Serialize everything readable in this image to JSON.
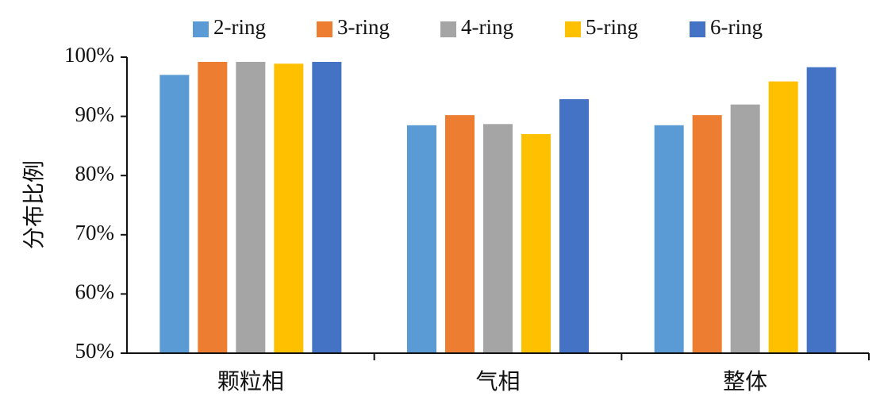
{
  "chart_data": {
    "type": "bar",
    "title": "",
    "xlabel": "",
    "ylabel": "分布比例",
    "categories": [
      "颗粒相",
      "气相",
      "整体"
    ],
    "series": [
      {
        "name": "2-ring",
        "color": "#5B9BD5",
        "values": [
          97.0,
          88.5,
          88.5
        ]
      },
      {
        "name": "3-ring",
        "color": "#ED7D31",
        "values": [
          99.2,
          90.2,
          90.2
        ]
      },
      {
        "name": "4-ring",
        "color": "#A5A5A5",
        "values": [
          99.2,
          88.7,
          92.0
        ]
      },
      {
        "name": "5-ring",
        "color": "#FFC000",
        "values": [
          98.9,
          87.0,
          95.9
        ]
      },
      {
        "name": "6-ring",
        "color": "#4472C4",
        "values": [
          99.2,
          92.9,
          98.3
        ]
      }
    ],
    "ylim": [
      50,
      100
    ],
    "yticks": [
      50,
      60,
      70,
      80,
      90,
      100
    ],
    "ytick_labels": [
      "50%",
      "60%",
      "70%",
      "80%",
      "90%",
      "100%"
    ],
    "grid": false,
    "legend": "top"
  }
}
